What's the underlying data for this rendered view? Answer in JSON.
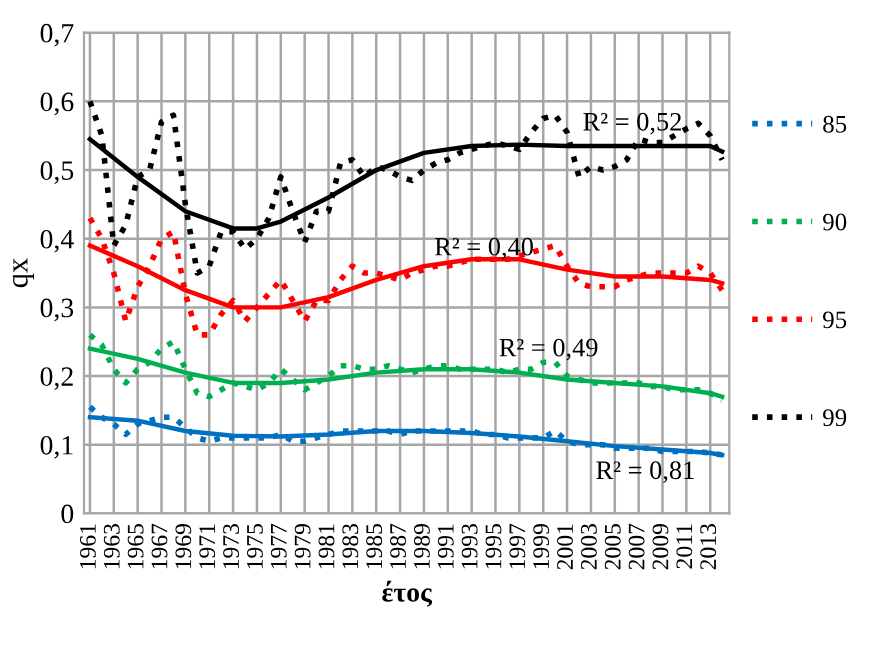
{
  "chart_data": {
    "type": "line",
    "xlabel": "έτος",
    "ylabel": "qx",
    "xlim": [
      1960.5,
      2014.6
    ],
    "ylim": [
      0,
      0.7
    ],
    "xticks": [
      1961,
      1963,
      1965,
      1967,
      1969,
      1971,
      1973,
      1975,
      1977,
      1979,
      1981,
      1983,
      1985,
      1987,
      1989,
      1991,
      1993,
      1995,
      1997,
      1999,
      2001,
      2003,
      2005,
      2007,
      2009,
      2011,
      2013
    ],
    "yticks": [
      0,
      {
        "value": 0.1,
        "label": "0,1"
      },
      {
        "value": 0.2,
        "label": "0,2"
      },
      {
        "value": 0.3,
        "label": "0,3"
      },
      {
        "value": 0.4,
        "label": "0,4"
      },
      {
        "value": 0.5,
        "label": "0,5"
      },
      {
        "value": 0.6,
        "label": "0,6"
      },
      {
        "value": 0.7,
        "label": "0,7"
      }
    ],
    "grid": true,
    "legend": "right",
    "marker": "none",
    "x": [
      1961,
      1962,
      1963,
      1964,
      1965,
      1966,
      1967,
      1968,
      1969,
      1970,
      1971,
      1972,
      1973,
      1974,
      1975,
      1976,
      1977,
      1978,
      1979,
      1980,
      1981,
      1982,
      1983,
      1984,
      1985,
      1986,
      1987,
      1988,
      1989,
      1990,
      1991,
      1992,
      1993,
      1994,
      1995,
      1996,
      1997,
      1998,
      1999,
      2000,
      2001,
      2002,
      2003,
      2004,
      2005,
      2006,
      2007,
      2008,
      2009,
      2010,
      2011,
      2012,
      2013,
      2014
    ],
    "series": [
      {
        "name": "85",
        "color": "#0070c0",
        "line_style": "dotted",
        "values": [
          0.155,
          0.14,
          0.13,
          0.115,
          0.13,
          0.135,
          0.14,
          0.14,
          0.125,
          0.11,
          0.105,
          0.11,
          0.11,
          0.11,
          0.11,
          0.11,
          0.115,
          0.105,
          0.105,
          0.11,
          0.115,
          0.12,
          0.12,
          0.12,
          0.12,
          0.12,
          0.115,
          0.12,
          0.12,
          0.12,
          0.12,
          0.12,
          0.12,
          0.115,
          0.115,
          0.11,
          0.11,
          0.11,
          0.11,
          0.12,
          0.105,
          0.1,
          0.1,
          0.1,
          0.095,
          0.095,
          0.095,
          0.095,
          0.09,
          0.09,
          0.09,
          0.09,
          0.088,
          0.085
        ]
      },
      {
        "name": "90",
        "color": "#00b050",
        "line_style": "dotted",
        "values": [
          0.26,
          0.245,
          0.21,
          0.19,
          0.21,
          0.22,
          0.24,
          0.25,
          0.21,
          0.175,
          0.17,
          0.18,
          0.19,
          0.185,
          0.18,
          0.19,
          0.21,
          0.195,
          0.18,
          0.19,
          0.2,
          0.215,
          0.215,
          0.21,
          0.21,
          0.215,
          0.21,
          0.205,
          0.21,
          0.215,
          0.215,
          0.21,
          0.21,
          0.21,
          0.21,
          0.205,
          0.21,
          0.21,
          0.22,
          0.22,
          0.2,
          0.195,
          0.19,
          0.19,
          0.19,
          0.19,
          0.19,
          0.185,
          0.185,
          0.18,
          0.18,
          0.18,
          0.175,
          0.165
        ]
      },
      {
        "name": "95",
        "color": "#ff0000",
        "line_style": "dotted",
        "values": [
          0.43,
          0.4,
          0.35,
          0.28,
          0.33,
          0.36,
          0.4,
          0.41,
          0.32,
          0.26,
          0.26,
          0.29,
          0.31,
          0.28,
          0.3,
          0.32,
          0.34,
          0.31,
          0.28,
          0.31,
          0.31,
          0.34,
          0.36,
          0.35,
          0.35,
          0.345,
          0.34,
          0.35,
          0.355,
          0.36,
          0.36,
          0.365,
          0.37,
          0.37,
          0.37,
          0.37,
          0.375,
          0.38,
          0.385,
          0.39,
          0.36,
          0.335,
          0.33,
          0.33,
          0.33,
          0.34,
          0.345,
          0.35,
          0.35,
          0.35,
          0.35,
          0.36,
          0.35,
          0.325
        ]
      },
      {
        "name": "99",
        "color": "#000000",
        "line_style": "dotted",
        "values": [
          0.6,
          0.55,
          0.39,
          0.42,
          0.49,
          0.5,
          0.57,
          0.58,
          0.45,
          0.35,
          0.36,
          0.41,
          0.41,
          0.385,
          0.4,
          0.43,
          0.49,
          0.44,
          0.395,
          0.44,
          0.44,
          0.51,
          0.515,
          0.49,
          0.505,
          0.5,
          0.49,
          0.485,
          0.5,
          0.51,
          0.515,
          0.525,
          0.53,
          0.535,
          0.54,
          0.535,
          0.53,
          0.555,
          0.575,
          0.58,
          0.555,
          0.49,
          0.505,
          0.5,
          0.505,
          0.515,
          0.545,
          0.54,
          0.54,
          0.55,
          0.56,
          0.568,
          0.55,
          0.515
        ]
      },
      {
        "color": "#0070c0",
        "line_style": "solid",
        "x": [
          1961,
          1965,
          1969,
          1973,
          1977,
          1981,
          1985,
          1989,
          1993,
          1997,
          2001,
          2005,
          2009,
          2013,
          2014
        ],
        "values": [
          0.14,
          0.135,
          0.12,
          0.113,
          0.112,
          0.115,
          0.12,
          0.12,
          0.117,
          0.112,
          0.105,
          0.098,
          0.093,
          0.088,
          0.085
        ]
      },
      {
        "color": "#00b050",
        "line_style": "solid",
        "x": [
          1961,
          1965,
          1969,
          1973,
          1977,
          1981,
          1985,
          1989,
          1993,
          1997,
          2001,
          2005,
          2009,
          2013,
          2014
        ],
        "values": [
          0.24,
          0.225,
          0.205,
          0.19,
          0.19,
          0.195,
          0.205,
          0.21,
          0.21,
          0.205,
          0.195,
          0.19,
          0.185,
          0.175,
          0.17
        ]
      },
      {
        "color": "#ff0000",
        "line_style": "solid",
        "x": [
          1961,
          1965,
          1969,
          1973,
          1977,
          1981,
          1985,
          1989,
          1993,
          1997,
          2001,
          2005,
          2009,
          2013,
          2014
        ],
        "values": [
          0.39,
          0.36,
          0.325,
          0.3,
          0.3,
          0.315,
          0.34,
          0.36,
          0.37,
          0.37,
          0.355,
          0.345,
          0.345,
          0.34,
          0.335
        ]
      },
      {
        "color": "#000000",
        "line_style": "solid",
        "x": [
          1961,
          1965,
          1969,
          1973,
          1975,
          1977,
          1981,
          1985,
          1989,
          1993,
          1997,
          2001,
          2005,
          2009,
          2013,
          2014
        ],
        "values": [
          0.545,
          0.49,
          0.44,
          0.415,
          0.415,
          0.425,
          0.46,
          0.5,
          0.525,
          0.535,
          0.537,
          0.535,
          0.535,
          0.535,
          0.535,
          0.527
        ]
      }
    ],
    "annotations": [
      "R² = 0,52",
      "R² = 0,40",
      "R² = 0,49",
      "R² = 0,81"
    ]
  }
}
